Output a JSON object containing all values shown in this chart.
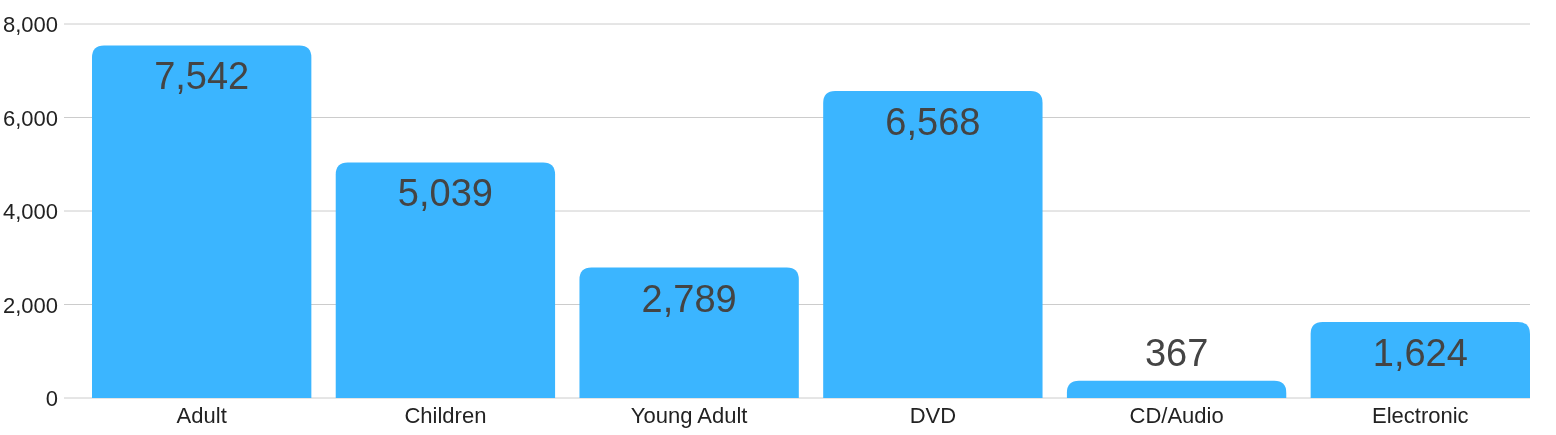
{
  "chart_data": {
    "type": "bar",
    "categories": [
      "Adult",
      "Children",
      "Young Adult",
      "DVD",
      "CD/Audio",
      "Electronic"
    ],
    "values": [
      7542,
      5039,
      2789,
      6568,
      367,
      1624
    ],
    "color": "#3bb5ff",
    "ylim": [
      0,
      8000
    ],
    "yticks": [
      0,
      {
        "value": 2000,
        "label": "2,000"
      },
      {
        "value": 4000,
        "label": "4,000"
      },
      {
        "value": 6000,
        "label": "6,000"
      },
      {
        "value": 8000,
        "label": "8,000"
      }
    ],
    "value_labels": [
      "7,542",
      "5,039",
      "2,789",
      "6,568",
      "367",
      "1,624"
    ],
    "grid": "y"
  }
}
